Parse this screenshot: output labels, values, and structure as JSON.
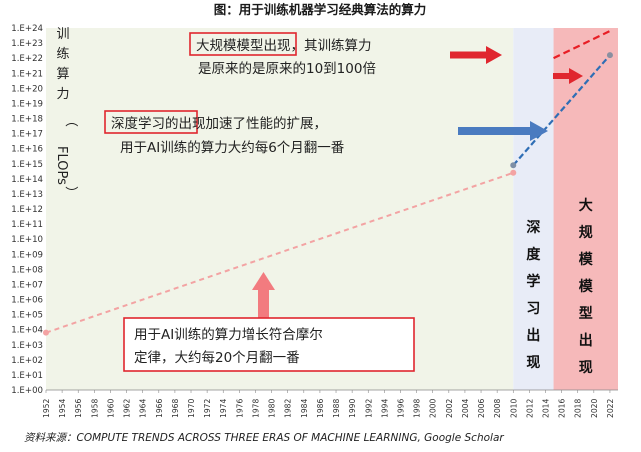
{
  "title": "图：用于训练机器学习经典算法的算力",
  "source": "资料来源：COMPUTE TRENDS ACROSS THREE ERAS OF MACHINE LEARNING, Google Scholar",
  "colors": {
    "pre_dl_band": "#f1f4e8",
    "dl_band": "#e8ecf7",
    "large_band": "#f6b9ba",
    "pre_dl_line": "#f3a3a3",
    "dl_line": "#2f6eb5",
    "large_line": "#e81e25",
    "blue_arrow": "#4a7bc0",
    "red_arrow": "#e0262e",
    "pink_arrow": "#f27b7f",
    "highlight_box": "#e0262e"
  },
  "chart_data": {
    "type": "line",
    "title": "图：用于训练机器学习经典算法的算力",
    "ylabel_chars": [
      "训",
      "练",
      "算",
      "力",
      "（",
      "FLOPs",
      "）"
    ],
    "y_scale": "log10",
    "ylim_exp": [
      0,
      24
    ],
    "yticks": [
      "1.E+00",
      "1.E+01",
      "1.E+02",
      "1.E+03",
      "1.E+04",
      "1.E+05",
      "1.E+06",
      "1.E+07",
      "1.E+08",
      "1.E+09",
      "1.E+10",
      "1.E+11",
      "1.E+12",
      "1.E+13",
      "1.E+14",
      "1.E+15",
      "1.E+16",
      "1.E+17",
      "1.E+18",
      "1.E+19",
      "1.E+20",
      "1.E+21",
      "1.E+22",
      "1.E+23",
      "1.E+24"
    ],
    "xlim": [
      1952,
      2023
    ],
    "xticks": [
      "1952",
      "1954",
      "1956",
      "1958",
      "1960",
      "1962",
      "1964",
      "1966",
      "1968",
      "1970",
      "1972",
      "1974",
      "1976",
      "1978",
      "1980",
      "1982",
      "1984",
      "1986",
      "1988",
      "1990",
      "1992",
      "1994",
      "1996",
      "1998",
      "2000",
      "2002",
      "2004",
      "2006",
      "2008",
      "2010",
      "2012",
      "2014",
      "2016",
      "2018",
      "2020",
      "2022"
    ],
    "eras": [
      {
        "label_chars": [
          "深",
          "度",
          "学",
          "习",
          "出",
          "现"
        ],
        "x_start": 2010,
        "x_end": 2015
      },
      {
        "label_chars": [
          "大",
          "规",
          "模",
          "模",
          "型",
          "出",
          "现"
        ],
        "x_start": 2015,
        "x_end": 2023
      }
    ],
    "series": [
      {
        "key": "pre_dl",
        "points": [
          [
            1952,
            3.8
          ],
          [
            2010,
            14.4
          ]
        ]
      },
      {
        "key": "dl",
        "points": [
          [
            2010,
            14.9
          ],
          [
            2022,
            22.2
          ]
        ]
      },
      {
        "key": "large",
        "points": [
          [
            2015,
            22.0
          ],
          [
            2022,
            23.8
          ]
        ]
      }
    ]
  },
  "annotations": {
    "large_model": {
      "highlight": "大规模模型",
      "rest1": "出现，其训练算力",
      "line2": "是原来的是原来的10到100倍"
    },
    "deep_learning": {
      "highlight": "深度学习",
      "rest1": "的出现加速了性能的扩展，",
      "line2": "用于AI训练的算力大约每6个月翻一番"
    },
    "moore": {
      "line1": "用于AI训练的算力增长符合摩尔",
      "line2": "定律，大约每20个月翻一番"
    }
  }
}
